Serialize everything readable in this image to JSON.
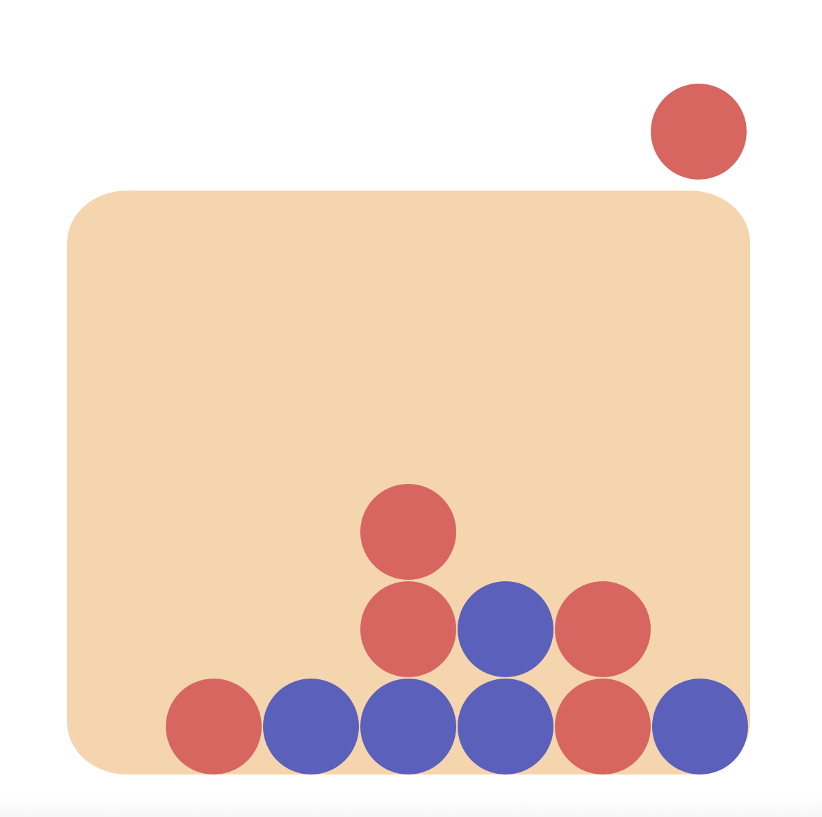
{
  "game": {
    "name": "",
    "columns": 7,
    "rows": 6,
    "player_colors": {
      "red": "#d76661",
      "blue": "#5b60bb"
    },
    "board_color": "#f5d5ae",
    "hover_disc": {
      "color": "red",
      "column": 6
    },
    "grid_bottom_to_top": [
      [
        null,
        "red",
        "blue",
        "blue",
        "blue",
        "red",
        "blue"
      ],
      [
        null,
        null,
        null,
        "red",
        "blue",
        "red",
        null
      ],
      [
        null,
        null,
        null,
        "red",
        null,
        null,
        null
      ],
      [
        null,
        null,
        null,
        null,
        null,
        null,
        null
      ],
      [
        null,
        null,
        null,
        null,
        null,
        null,
        null
      ],
      [
        null,
        null,
        null,
        null,
        null,
        null,
        null
      ]
    ]
  }
}
